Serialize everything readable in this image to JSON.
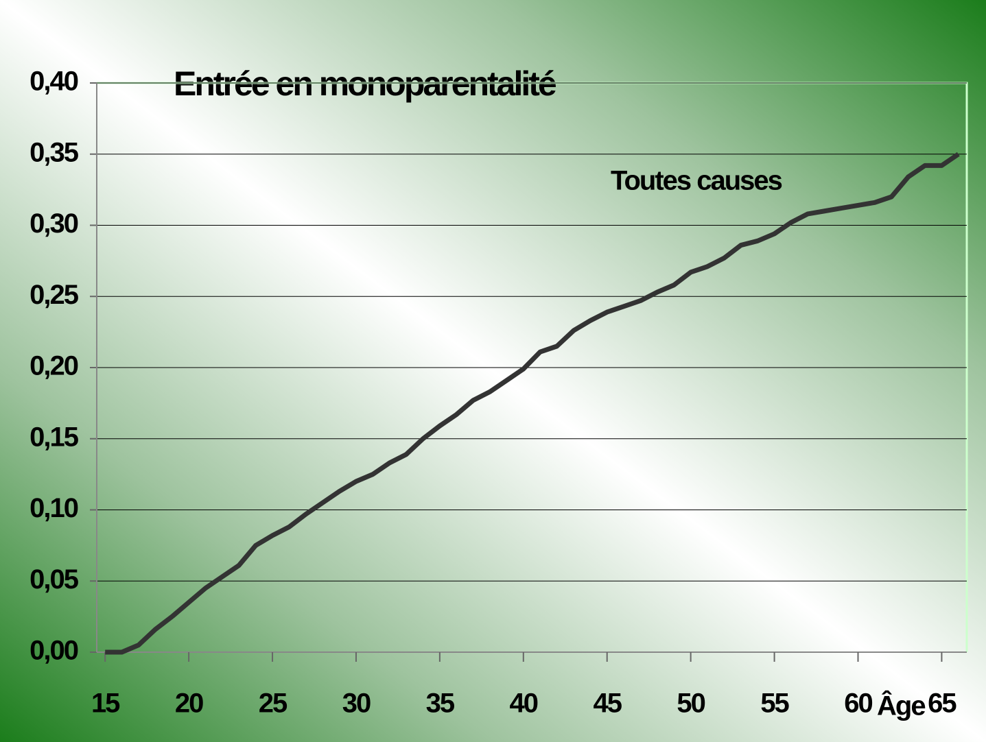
{
  "chart_data": {
    "type": "line",
    "title": "Entrée en monoparentalité",
    "annotation": "Toutes causes",
    "x_label": "Âge",
    "x": [
      15,
      16,
      17,
      18,
      19,
      20,
      21,
      22,
      23,
      24,
      25,
      26,
      27,
      28,
      29,
      30,
      31,
      32,
      33,
      34,
      35,
      36,
      37,
      38,
      39,
      40,
      41,
      42,
      43,
      44,
      45,
      46,
      47,
      48,
      49,
      50,
      51,
      52,
      53,
      54,
      55,
      56,
      57,
      58,
      59,
      60,
      61,
      62,
      63,
      64,
      65,
      66
    ],
    "series": [
      {
        "name": "Toutes causes",
        "color": "#333333",
        "values": [
          0,
          0,
          0.005,
          0.016,
          0.025,
          0.035,
          0.045,
          0.053,
          0.061,
          0.075,
          0.082,
          0.088,
          0.097,
          0.105,
          0.113,
          0.12,
          0.125,
          0.133,
          0.139,
          0.15,
          0.159,
          0.167,
          0.177,
          0.183,
          0.191,
          0.199,
          0.211,
          0.215,
          0.226,
          0.233,
          0.239,
          0.243,
          0.247,
          0.253,
          0.258,
          0.267,
          0.271,
          0.277,
          0.286,
          0.289,
          0.294,
          0.302,
          0.308,
          0.31,
          0.312,
          0.314,
          0.316,
          0.32,
          0.334,
          0.342,
          0.342,
          0.35
        ]
      }
    ],
    "xlim": [
      14.5,
      66.5
    ],
    "xticks": [
      15,
      20,
      25,
      30,
      35,
      40,
      45,
      50,
      55,
      60,
      65
    ],
    "ylim": [
      0,
      0.4
    ],
    "yticks": [
      {
        "value": 0,
        "label": "0,00"
      },
      {
        "value": 0.05,
        "label": "0,05"
      },
      {
        "value": 0.1,
        "label": "0,10"
      },
      {
        "value": 0.15,
        "label": "0,15"
      },
      {
        "value": 0.2,
        "label": "0,20"
      },
      {
        "value": 0.25,
        "label": "0,25"
      },
      {
        "value": 0.3,
        "label": "0,30"
      },
      {
        "value": 0.35,
        "label": "0,35"
      },
      {
        "value": 0.4,
        "label": "0,40"
      }
    ],
    "grid": true
  }
}
